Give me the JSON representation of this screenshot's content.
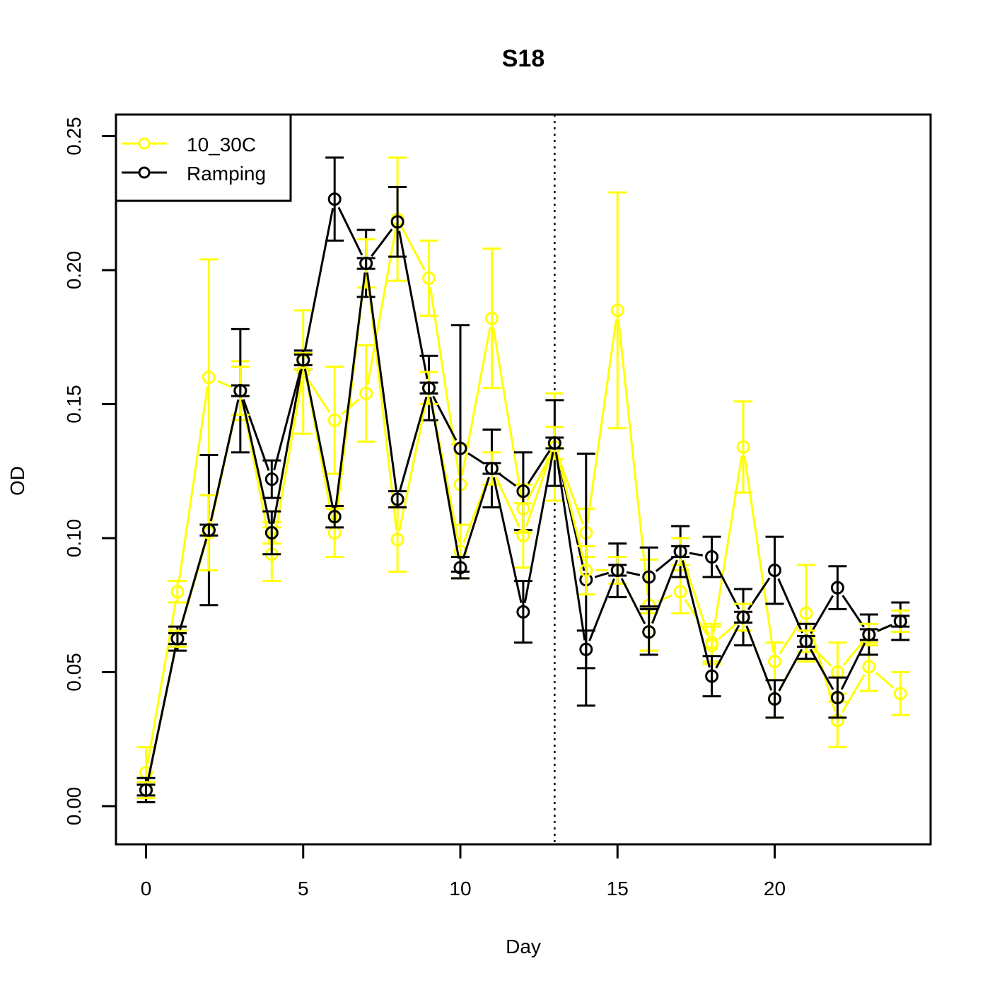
{
  "chart_data": {
    "type": "line",
    "title": "S18",
    "xlabel": "Day",
    "ylabel": "OD",
    "xlim": [
      -1,
      25
    ],
    "ylim": [
      -0.015,
      0.258
    ],
    "xticks": [
      0,
      5,
      10,
      15,
      20
    ],
    "yticks": [
      0.0,
      0.05,
      0.1,
      0.15,
      0.2,
      0.25
    ],
    "ytick_labels": [
      "0.00",
      "0.05",
      "0.10",
      "0.15",
      "0.20",
      "0.25"
    ],
    "grid": false,
    "legend_position": "top-left",
    "vline": {
      "x": 13,
      "style": "dotted",
      "color": "#000000"
    },
    "series": [
      {
        "name": "10_30C",
        "color": "#FFFF00",
        "points": [
          {
            "x": 0,
            "y": 0.0125,
            "err": 0.0095
          },
          {
            "x": 1,
            "y": 0.08,
            "err": 0.004
          },
          {
            "x": 2,
            "y": 0.16,
            "err": 0.044
          },
          {
            "x": 3,
            "y": 0.155,
            "err": 0.011
          },
          {
            "x": 4,
            "y": 0.094,
            "err": 0.01
          },
          {
            "x": 5,
            "y": 0.162,
            "err": 0.023
          },
          {
            "x": 6,
            "y": 0.144,
            "err": 0.02
          },
          {
            "x": 7,
            "y": 0.154,
            "err": 0.018
          },
          {
            "x": 8,
            "y": 0.219,
            "err": 0.023
          },
          {
            "x": 9,
            "y": 0.197,
            "err": 0.014
          },
          {
            "x": 10,
            "y": 0.12,
            "err": 0.015
          },
          {
            "x": 11,
            "y": 0.182,
            "err": 0.026
          },
          {
            "x": 12,
            "y": 0.111,
            "err": 0.009
          },
          {
            "x": 13,
            "y": 0.134,
            "err": 0.02
          },
          {
            "x": 14,
            "y": 0.102,
            "err": 0.009
          },
          {
            "x": 15,
            "y": 0.185,
            "err": 0.044
          },
          {
            "x": 16,
            "y": 0.075,
            "err": 0.017
          },
          {
            "x": 17,
            "y": 0.08,
            "err": 0.008
          },
          {
            "x": 18,
            "y": 0.061,
            "err": 0.007
          },
          {
            "x": 19,
            "y": 0.134,
            "err": 0.017
          },
          {
            "x": 20,
            "y": 0.054,
            "err": 0.007
          },
          {
            "x": 21,
            "y": 0.072,
            "err": 0.018
          },
          {
            "x": 22,
            "y": 0.032,
            "err": 0.01
          },
          {
            "x": 23,
            "y": 0.052,
            "err": 0.009
          },
          {
            "x": 24,
            "y": 0.042,
            "err": 0.008
          }
        ]
      },
      {
        "name": "Ramping",
        "color": "#000000",
        "points": [
          {
            "x": 0,
            "y": 0.006,
            "err": 0.0045
          },
          {
            "x": 1,
            "y": 0.0625,
            "err": 0.0045
          },
          {
            "x": 2,
            "y": 0.103,
            "err": 0.028
          },
          {
            "x": 3,
            "y": 0.155,
            "err": 0.023
          },
          {
            "x": 4,
            "y": 0.122,
            "err": 0.007
          },
          {
            "x": 5,
            "y": 0.1665,
            "err": 0.0035
          },
          {
            "x": 6,
            "y": 0.2265,
            "err": 0.0155
          },
          {
            "x": 7,
            "y": 0.2025,
            "err": 0.0125
          },
          {
            "x": 8,
            "y": 0.218,
            "err": 0.013
          },
          {
            "x": 9,
            "y": 0.156,
            "err": 0.012
          },
          {
            "x": 10,
            "y": 0.1335,
            "err": 0.046
          },
          {
            "x": 11,
            "y": 0.126,
            "err": 0.0145
          },
          {
            "x": 12,
            "y": 0.1175,
            "err": 0.0145
          },
          {
            "x": 13,
            "y": 0.1355,
            "err": 0.016
          },
          {
            "x": 14,
            "y": 0.0845,
            "err": 0.047
          },
          {
            "x": 15,
            "y": 0.088,
            "err": 0.01
          },
          {
            "x": 16,
            "y": 0.0855,
            "err": 0.011
          },
          {
            "x": 17,
            "y": 0.095,
            "err": 0.0095
          },
          {
            "x": 18,
            "y": 0.093,
            "err": 0.0075
          },
          {
            "x": 19,
            "y": 0.0705,
            "err": 0.0105
          },
          {
            "x": 20,
            "y": 0.088,
            "err": 0.0125
          },
          {
            "x": 21,
            "y": 0.0615,
            "err": 0.0065
          },
          {
            "x": 22,
            "y": 0.0815,
            "err": 0.008
          },
          {
            "x": 23,
            "y": 0.064,
            "err": 0.0075
          },
          {
            "x": 24,
            "y": 0.069,
            "err": 0.007
          }
        ]
      },
      {
        "name": "",
        "color": "#FFFF00",
        "points": [
          {
            "x": 0,
            "y": 0.006,
            "err": 0.003
          },
          {
            "x": 1,
            "y": 0.0625,
            "err": 0.003
          },
          {
            "x": 2,
            "y": 0.102,
            "err": 0.014
          },
          {
            "x": 3,
            "y": 0.155,
            "err": 0.009
          },
          {
            "x": 4,
            "y": 0.102,
            "err": 0.004
          },
          {
            "x": 5,
            "y": 0.166,
            "err": 0.003
          },
          {
            "x": 6,
            "y": 0.102,
            "err": 0.009
          },
          {
            "x": 7,
            "y": 0.2025,
            "err": 0.009
          },
          {
            "x": 8,
            "y": 0.0995,
            "err": 0.012
          },
          {
            "x": 9,
            "y": 0.156,
            "err": 0.006
          },
          {
            "x": 10,
            "y": 0.095,
            "err": 0.01
          },
          {
            "x": 11,
            "y": 0.126,
            "err": 0.006
          },
          {
            "x": 12,
            "y": 0.101,
            "err": 0.012
          },
          {
            "x": 13,
            "y": 0.1355,
            "err": 0.006
          },
          {
            "x": 14,
            "y": 0.088,
            "err": 0.009
          },
          {
            "x": 15,
            "y": 0.088,
            "err": 0.005
          },
          {
            "x": 16,
            "y": 0.065,
            "err": 0.007
          },
          {
            "x": 17,
            "y": 0.095,
            "err": 0.005
          },
          {
            "x": 18,
            "y": 0.06,
            "err": 0.007
          },
          {
            "x": 19,
            "y": 0.0705,
            "err": 0.005
          },
          {
            "x": 20,
            "y": 0.04,
            "err": 0.007
          },
          {
            "x": 21,
            "y": 0.0615,
            "err": 0.004
          },
          {
            "x": 22,
            "y": 0.05,
            "err": 0.011
          },
          {
            "x": 23,
            "y": 0.064,
            "err": 0.004
          },
          {
            "x": 24,
            "y": 0.069,
            "err": 0.004
          }
        ]
      },
      {
        "name": "",
        "color": "#000000",
        "points": [
          {
            "x": 0,
            "y": 0.006,
            "err": 0.002
          },
          {
            "x": 1,
            "y": 0.0625,
            "err": 0.002
          },
          {
            "x": 2,
            "y": 0.103,
            "err": 0.002
          },
          {
            "x": 3,
            "y": 0.155,
            "err": 0.002
          },
          {
            "x": 4,
            "y": 0.102,
            "err": 0.008
          },
          {
            "x": 5,
            "y": 0.1665,
            "err": 0.002
          },
          {
            "x": 6,
            "y": 0.108,
            "err": 0.004
          },
          {
            "x": 7,
            "y": 0.2025,
            "err": 0.002
          },
          {
            "x": 8,
            "y": 0.1145,
            "err": 0.003
          },
          {
            "x": 9,
            "y": 0.156,
            "err": 0.002
          },
          {
            "x": 10,
            "y": 0.089,
            "err": 0.004
          },
          {
            "x": 11,
            "y": 0.126,
            "err": 0.002
          },
          {
            "x": 12,
            "y": 0.0725,
            "err": 0.0115
          },
          {
            "x": 13,
            "y": 0.1355,
            "err": 0.002
          },
          {
            "x": 14,
            "y": 0.0585,
            "err": 0.007
          },
          {
            "x": 15,
            "y": 0.088,
            "err": 0.002
          },
          {
            "x": 16,
            "y": 0.065,
            "err": 0.0085
          },
          {
            "x": 17,
            "y": 0.095,
            "err": 0.002
          },
          {
            "x": 18,
            "y": 0.0485,
            "err": 0.0075
          },
          {
            "x": 19,
            "y": 0.0705,
            "err": 0.002
          },
          {
            "x": 20,
            "y": 0.04,
            "err": 0.007
          },
          {
            "x": 21,
            "y": 0.0615,
            "err": 0.002
          },
          {
            "x": 22,
            "y": 0.0405,
            "err": 0.0075
          },
          {
            "x": 23,
            "y": 0.064,
            "err": 0.002
          },
          {
            "x": 24,
            "y": 0.069,
            "err": 0.002
          }
        ]
      }
    ]
  }
}
